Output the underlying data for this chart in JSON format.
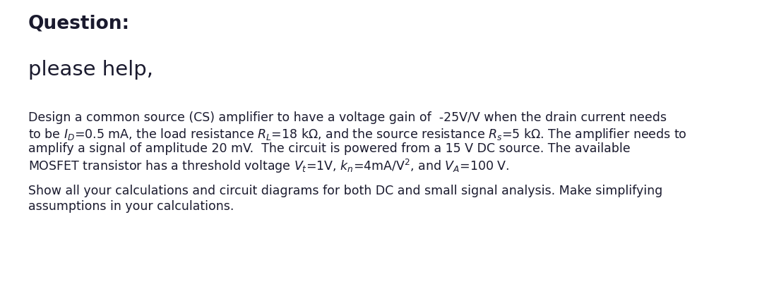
{
  "background_color": "#ffffff",
  "text_color": "#1a1a2e",
  "title_text": "Question:",
  "title_fontsize": 19,
  "subtitle_text": "please help,",
  "subtitle_fontsize": 21,
  "body_fontsize": 12.5,
  "body_line1": "Design a common source (CS) amplifier to have a voltage gain of  -25V/V when the drain current needs",
  "body_line3": "amplify a signal of amplitude 20 mV.  The circuit is powered from a 15 V DC source. The available",
  "footer_line1": "Show all your calculations and circuit diagrams for both DC and small signal analysis. Make simplifying",
  "footer_line2": "assumptions in your calculations.",
  "omega": "Ω"
}
